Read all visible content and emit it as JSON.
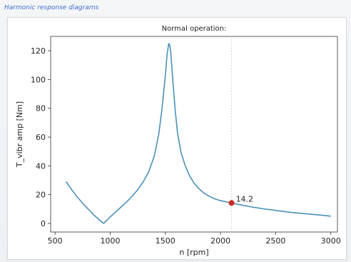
{
  "header": {
    "title": "Harmonic response diagrams"
  },
  "chart_data": {
    "type": "line",
    "title": "Normal operation:",
    "xlabel": "n [rpm]",
    "ylabel": "T_vibr amp [Nm]",
    "xlim": [
      460,
      3060
    ],
    "ylim": [
      -6,
      130
    ],
    "xticks": [
      500,
      1000,
      1500,
      2000,
      2500,
      3000
    ],
    "yticks": [
      0,
      20,
      40,
      60,
      80,
      100,
      120
    ],
    "grid": false,
    "line_color": "#4a90b8",
    "series": [
      {
        "x": [
          600,
          650,
          700,
          750,
          800,
          850,
          900,
          940,
          1000,
          1050,
          1100,
          1150,
          1200,
          1250,
          1300,
          1350,
          1400,
          1440,
          1470,
          1500,
          1515,
          1530,
          1540,
          1550,
          1560,
          1575,
          1590,
          1610,
          1640,
          1680,
          1720,
          1760,
          1800,
          1850,
          1900,
          1950,
          2000,
          2050,
          2100,
          2150,
          2200,
          2300,
          2400,
          2500,
          2600,
          2700,
          2800,
          2900,
          3000
        ],
        "y": [
          29,
          23.5,
          18.5,
          14,
          10,
          6,
          2.5,
          0,
          4.5,
          8,
          11.5,
          15,
          19,
          23.5,
          29,
          36,
          47,
          62,
          80,
          103,
          117,
          125,
          124,
          118,
          107,
          92,
          78,
          63,
          50,
          40,
          33,
          28,
          24.5,
          21,
          18.8,
          17,
          15.8,
          15,
          14.2,
          13.4,
          12.6,
          11.2,
          10,
          9,
          8,
          7.2,
          6.5,
          5.8,
          5
        ]
      }
    ],
    "marker": {
      "x": 2100,
      "y": 14.2,
      "label": "14.2",
      "color": "#cc2a2a"
    },
    "vline_x": 2100
  }
}
